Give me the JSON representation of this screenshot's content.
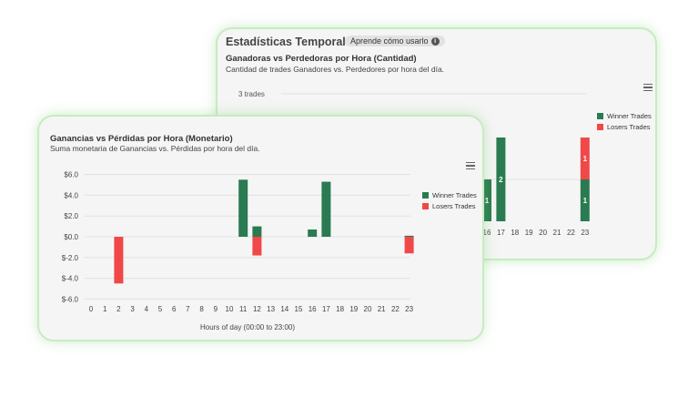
{
  "colors": {
    "winner": "#2a7a52",
    "loser": "#f04848"
  },
  "back_card": {
    "section_title": "Estadísticas Temporales",
    "help_label": "Aprende cómo usarlo",
    "help_icon": "info-icon",
    "chart_title": "Ganadoras vs Perdedoras por Hora (Cantidad)",
    "chart_subtitle": "Cantidad de trades Ganadores vs. Perdedores por hora del día.",
    "y_top_label": "3 trades",
    "menu_icon": "hamburger-menu-icon",
    "legend": [
      "Winner Trades",
      "Losers Trades"
    ]
  },
  "front_card": {
    "chart_title": "Ganancias vs Pérdidas por Hora (Monetario)",
    "chart_subtitle": "Suma monetaria de Ganancias vs. Pérdidas por hora del día.",
    "menu_icon": "hamburger-menu-icon",
    "legend": [
      "Winner Trades",
      "Losers Trades"
    ]
  },
  "chart_data": [
    {
      "type": "bar",
      "stacked": true,
      "title": "Ganadoras vs Perdedoras por Hora (Cantidad)",
      "subtitle": "Cantidad de trades Ganadores vs. Perdedores por hora del día.",
      "visible_categories": [
        "16",
        "17",
        "18",
        "19",
        "20",
        "21",
        "22",
        "23"
      ],
      "series": [
        {
          "name": "Winner Trades",
          "values": [
            1,
            2,
            0,
            0,
            0,
            0,
            0,
            1
          ],
          "data_labels": [
            "1",
            "2",
            "",
            "",
            "",
            "",
            "",
            "1"
          ]
        },
        {
          "name": "Losers Trades",
          "values": [
            0,
            0,
            0,
            0,
            0,
            0,
            0,
            1
          ],
          "data_labels": [
            "",
            "",
            "",
            "",
            "",
            "",
            "",
            "1"
          ]
        }
      ],
      "y_top_label": "3 trades",
      "ylim": [
        0,
        3
      ],
      "legend_position": "right",
      "grid": true
    },
    {
      "type": "bar",
      "title": "Ganancias vs Pérdidas por Hora (Monetario)",
      "subtitle": "Suma monetaria de Ganancias vs. Pérdidas por hora del día.",
      "xlabel": "Hours of day (00:00 to 23:00)",
      "ylabel": "",
      "categories": [
        "0",
        "1",
        "2",
        "3",
        "4",
        "5",
        "6",
        "7",
        "8",
        "9",
        "10",
        "11",
        "12",
        "13",
        "14",
        "15",
        "16",
        "17",
        "18",
        "19",
        "20",
        "21",
        "22",
        "23"
      ],
      "series": [
        {
          "name": "Winner Trades",
          "values": [
            0,
            0,
            0,
            0,
            0,
            0,
            0,
            0,
            0,
            0,
            0,
            5.5,
            1.0,
            0,
            0,
            0,
            0.7,
            5.3,
            0,
            0,
            0,
            0,
            0,
            0.1
          ]
        },
        {
          "name": "Losers Trades",
          "values": [
            0,
            0,
            -4.5,
            0,
            0,
            0,
            0,
            0,
            0,
            0,
            0,
            0,
            -1.8,
            0,
            0,
            0,
            0,
            0,
            0,
            0,
            0,
            0,
            0,
            -1.6
          ]
        }
      ],
      "y_ticks": [
        "$6.0",
        "$4.0",
        "$2.0",
        "$0.0",
        "$-2.0",
        "$-4.0",
        "$-6.0"
      ],
      "ylim": [
        -6,
        6
      ],
      "legend_position": "right",
      "grid": true
    }
  ]
}
